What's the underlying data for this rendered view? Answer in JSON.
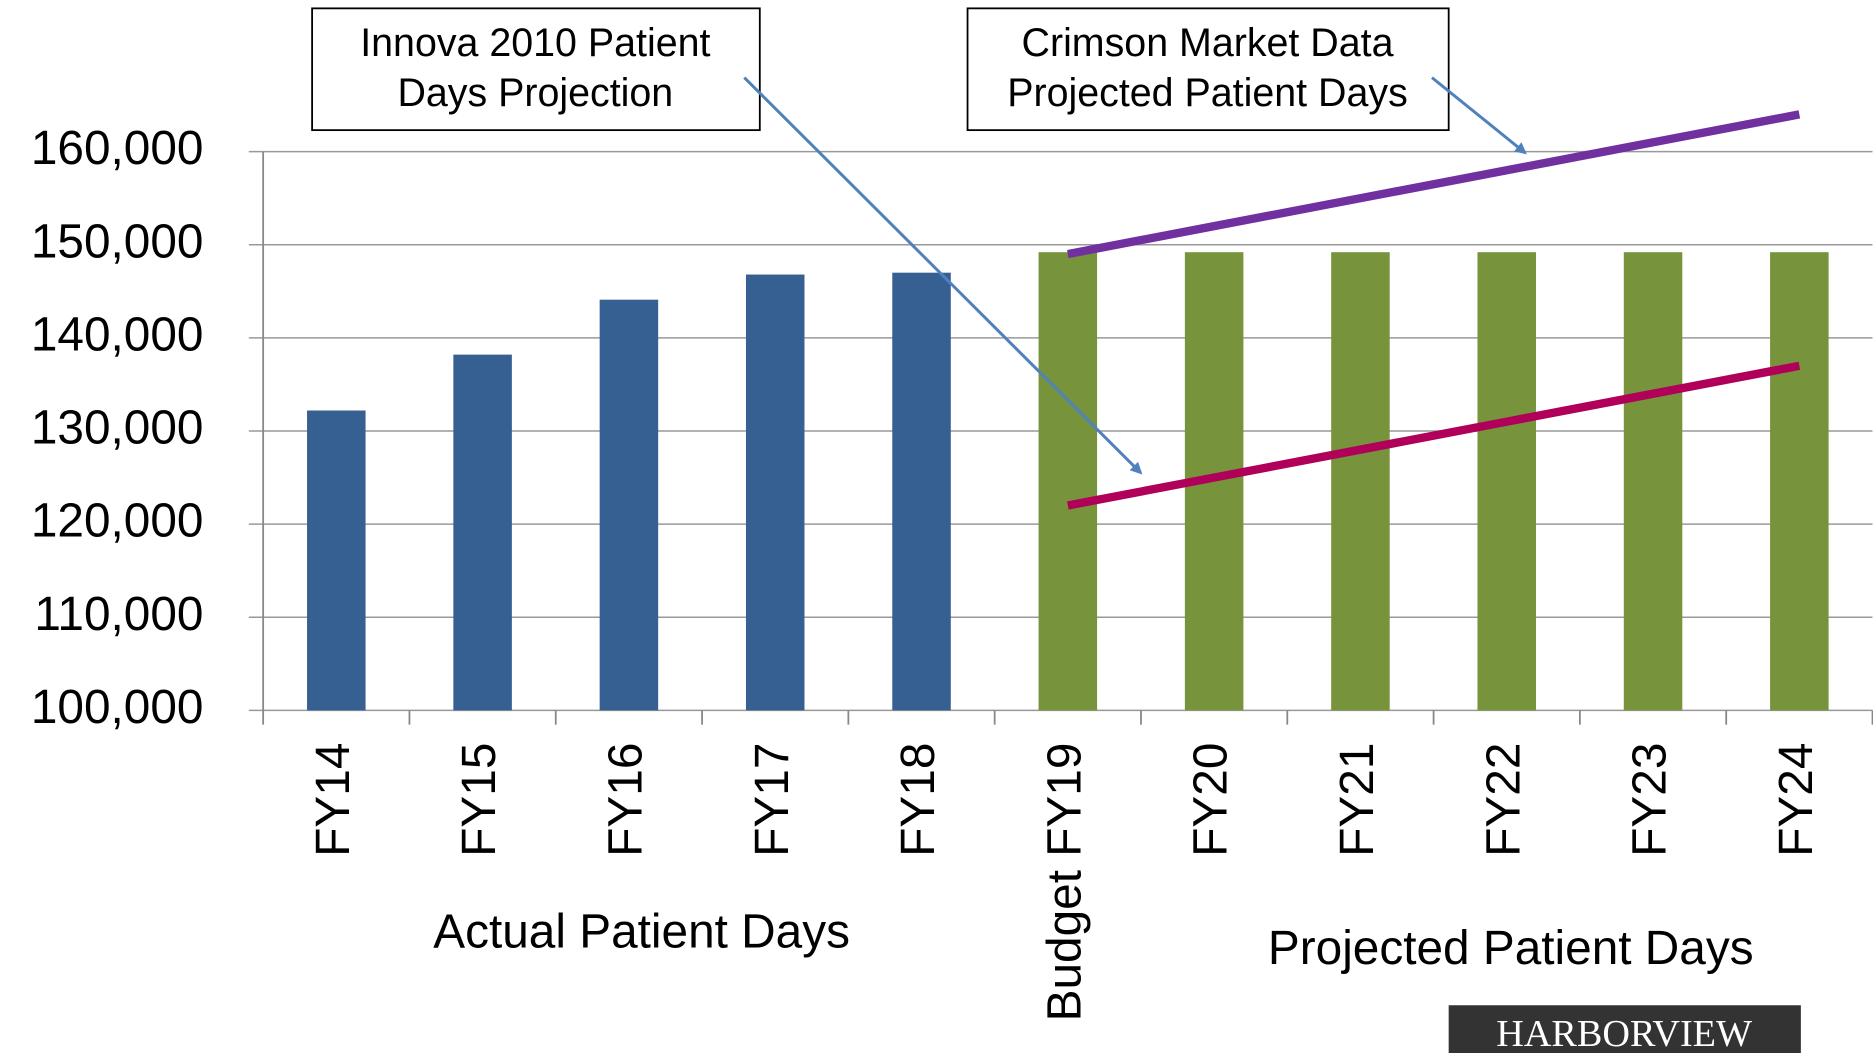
{
  "chart_data": {
    "type": "bar",
    "categories": [
      "FY14",
      "FY15",
      "FY16",
      "FY17",
      "FY18",
      "Budget FY19",
      "FY20",
      "FY21",
      "FY22",
      "FY23",
      "FY24"
    ],
    "values": [
      132200,
      138200,
      144100,
      146800,
      147000,
      149200,
      149200,
      149200,
      149200,
      149200,
      149200
    ],
    "colors": [
      "#376092",
      "#376092",
      "#376092",
      "#376092",
      "#376092",
      "#77933c",
      "#77933c",
      "#77933c",
      "#77933c",
      "#77933c",
      "#77933c"
    ],
    "lines": [
      {
        "color": "#7030a0",
        "values": [
          null,
          null,
          null,
          null,
          null,
          149000,
          152000,
          155000,
          158000,
          161000,
          164000
        ]
      },
      {
        "color": "#b0005a",
        "values": [
          null,
          null,
          null,
          null,
          null,
          122000,
          125000,
          128000,
          131000,
          134000,
          137000
        ]
      }
    ],
    "ylim": [
      100000,
      160000
    ],
    "yticks": [
      {
        "value": 100000,
        "label": "100,000"
      },
      {
        "value": 110000,
        "label": "110,000"
      },
      {
        "value": 120000,
        "label": "120,000"
      },
      {
        "value": 130000,
        "label": "130,000"
      },
      {
        "value": 140000,
        "label": "140,000"
      },
      {
        "value": 150000,
        "label": "150,000"
      },
      {
        "value": 160000,
        "label": "160,000"
      }
    ],
    "grid": true,
    "group_labels": [
      "Actual Patient Days",
      "Projected Patient Days"
    ],
    "annotations": [
      {
        "lines": [
          "Innova 2010 Patient",
          "Days Projection"
        ]
      },
      {
        "lines": [
          "Crimson Market Data",
          "Projected Patient Days"
        ]
      }
    ],
    "logo": "HARBORVIEW"
  }
}
